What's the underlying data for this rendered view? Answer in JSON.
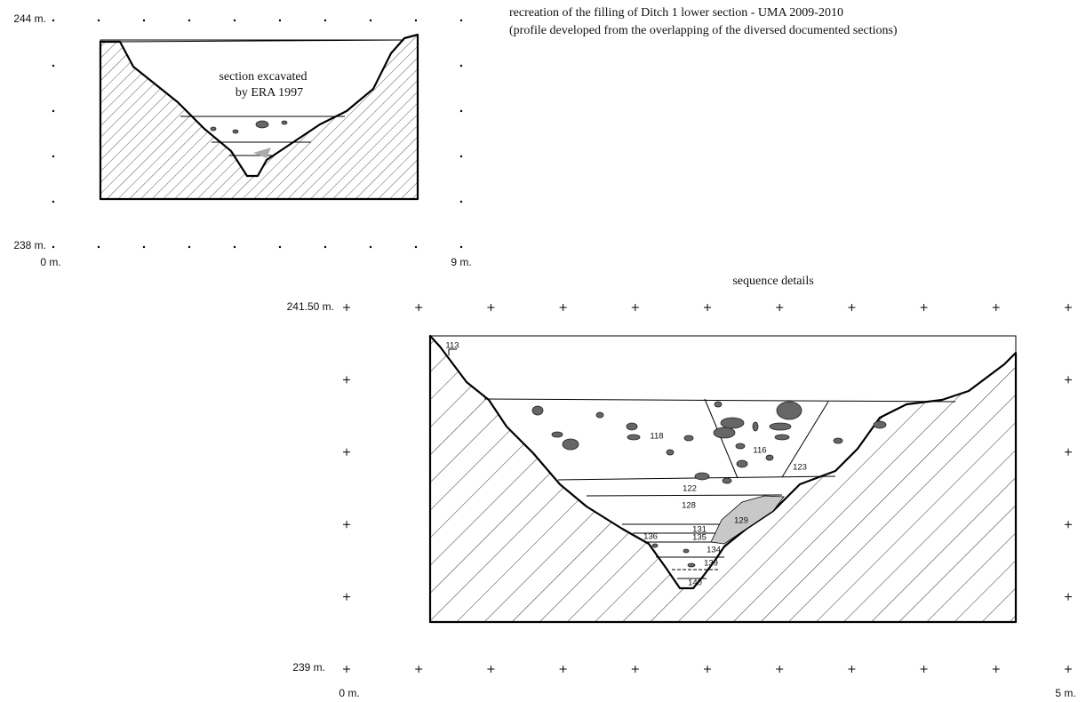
{
  "header": {
    "title": "recreation of the filling of Ditch 1 lower section - UMA 2009-2010",
    "subtitle": "(profile developed from the overlapping of the diversed documented sections)"
  },
  "overview": {
    "y_top": "244 m.",
    "y_bottom": "238 m.",
    "x_left": "0 m.",
    "x_right": "9 m.",
    "note": [
      "section excavated",
      "by ERA 1997"
    ]
  },
  "detail": {
    "title": "sequence details",
    "y_top": "241.50 m.",
    "y_bottom": "239 m.",
    "x_left": "0 m.",
    "x_right": "5 m.",
    "layers": [
      "113",
      "118",
      "116",
      "123",
      "122",
      "128",
      "129",
      "131",
      "135",
      "136",
      "134",
      "139",
      "140"
    ]
  }
}
